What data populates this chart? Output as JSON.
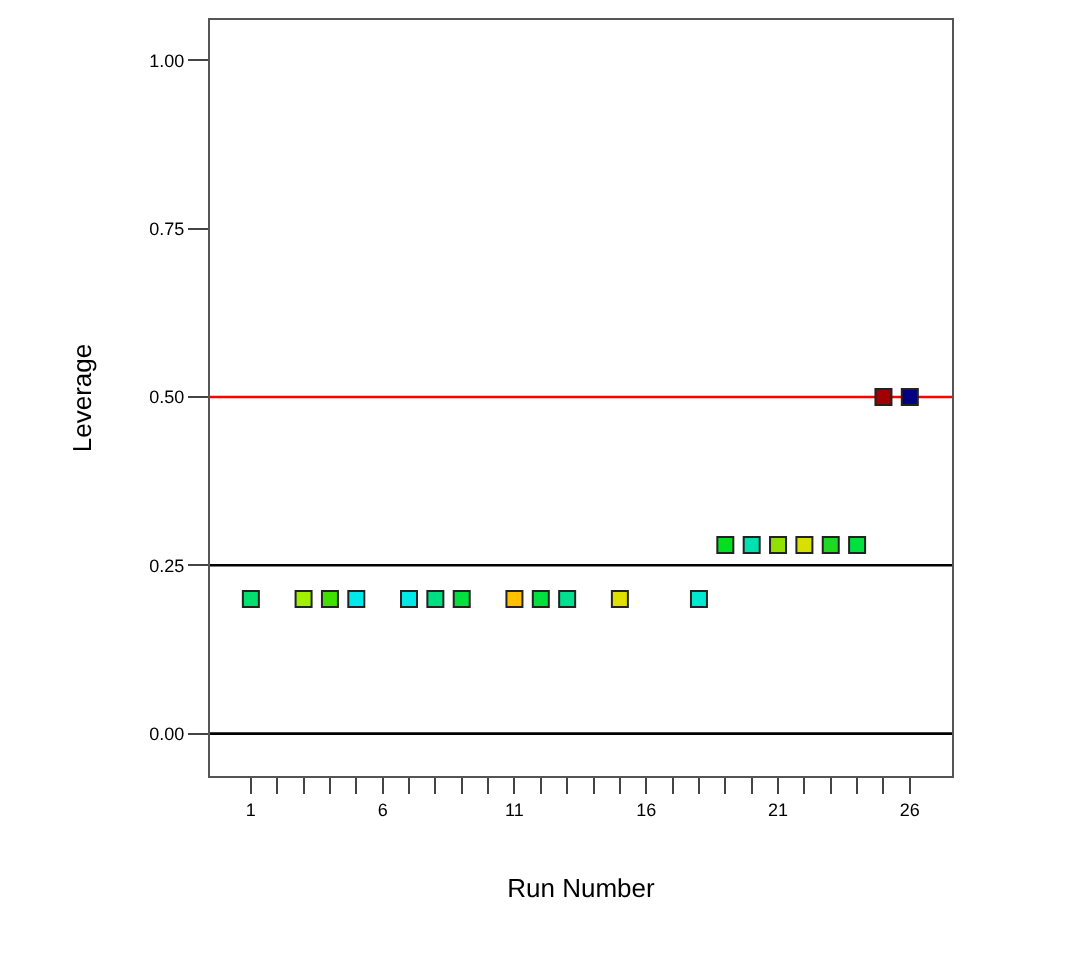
{
  "chart_data": {
    "type": "scatter",
    "xlabel": "Run Number",
    "ylabel": "Leverage",
    "marker": "square",
    "x": [
      1,
      3,
      4,
      5,
      7,
      8,
      9,
      11,
      12,
      13,
      15,
      18,
      19,
      20,
      21,
      22,
      23,
      24,
      25,
      26
    ],
    "values": [
      0.2,
      0.2,
      0.2,
      0.2,
      0.2,
      0.2,
      0.2,
      0.2,
      0.2,
      0.2,
      0.2,
      0.2,
      0.28,
      0.28,
      0.28,
      0.28,
      0.28,
      0.28,
      0.5,
      0.5
    ],
    "colors": [
      "#00e070",
      "#a0f000",
      "#40e000",
      "#00e8e8",
      "#00e8e8",
      "#00e080",
      "#00e040",
      "#ffc000",
      "#00e040",
      "#00e090",
      "#e0e000",
      "#00e8d0",
      "#00e020",
      "#00e0b0",
      "#90e000",
      "#d8e000",
      "#20d820",
      "#00e040",
      "#a00000",
      "#000080"
    ],
    "xlim": [
      -0.55,
      27.6
    ],
    "ylim": [
      -0.063,
      1.06
    ],
    "xticks": [
      1,
      {
        "value": 2,
        "label": null
      },
      {
        "value": 3,
        "label": null
      },
      {
        "value": 4,
        "label": null
      },
      {
        "value": 5,
        "label": null
      },
      6,
      {
        "value": 7,
        "label": null
      },
      {
        "value": 8,
        "label": null
      },
      {
        "value": 9,
        "label": null
      },
      {
        "value": 10,
        "label": null
      },
      11,
      {
        "value": 12,
        "label": null
      },
      {
        "value": 13,
        "label": null
      },
      {
        "value": 14,
        "label": null
      },
      {
        "value": 15,
        "label": null
      },
      16,
      {
        "value": 17,
        "label": null
      },
      {
        "value": 18,
        "label": null
      },
      {
        "value": 19,
        "label": null
      },
      {
        "value": 20,
        "label": null
      },
      21,
      {
        "value": 22,
        "label": null
      },
      {
        "value": 23,
        "label": null
      },
      {
        "value": 24,
        "label": null
      },
      {
        "value": 25,
        "label": null
      },
      26
    ],
    "yticks": [
      {
        "value": 0,
        "label": "0.00"
      },
      {
        "value": 0.25,
        "label": "0.25"
      },
      {
        "value": 0.5,
        "label": "0.50"
      },
      {
        "value": 0.75,
        "label": "0.75"
      },
      {
        "value": 1,
        "label": "1.00"
      }
    ],
    "ref_lines": [
      {
        "axis": "y",
        "value": 0,
        "color": "#000000"
      },
      {
        "axis": "y",
        "value": 0.25,
        "color": "#000000"
      },
      {
        "axis": "y",
        "value": 0.5,
        "color": "#ff0000"
      }
    ]
  }
}
